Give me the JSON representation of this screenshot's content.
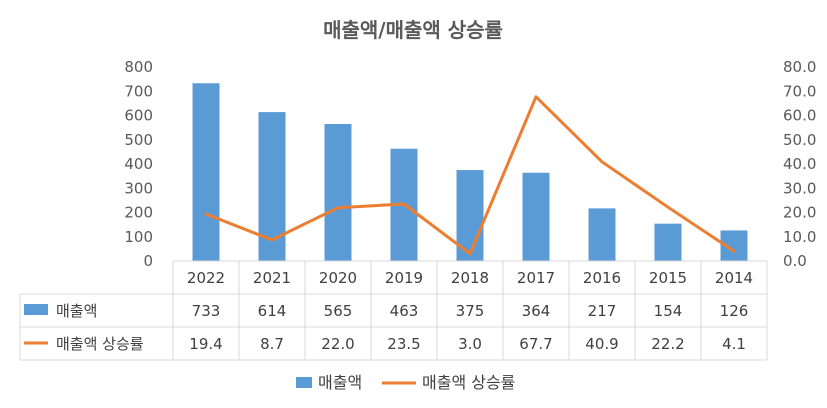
{
  "chart_data": {
    "type": "bar",
    "title": "매출액/매출액 상승률",
    "categories": [
      "2022",
      "2021",
      "2020",
      "2019",
      "2018",
      "2017",
      "2016",
      "2015",
      "2014"
    ],
    "series": [
      {
        "name": "매출액",
        "kind": "bar",
        "axis": "left",
        "color": "#5B9BD5",
        "values": [
          733,
          614,
          565,
          463,
          375,
          364,
          217,
          154,
          126
        ],
        "labels": [
          "733",
          "614",
          "565",
          "463",
          "375",
          "364",
          "217",
          "154",
          "126"
        ]
      },
      {
        "name": "매출액 상승률",
        "kind": "line",
        "axis": "right",
        "color": "#ED7D31",
        "values": [
          19.4,
          8.7,
          22.0,
          23.5,
          3.0,
          67.7,
          40.9,
          22.2,
          4.1
        ],
        "labels": [
          "19.4",
          "8.7",
          "22.0",
          "23.5",
          "3.0",
          "67.7",
          "40.9",
          "22.2",
          "4.1"
        ]
      }
    ],
    "ylim_left": [
      0,
      800
    ],
    "yticks_left": [
      "0",
      "100",
      "200",
      "300",
      "400",
      "500",
      "600",
      "700",
      "800"
    ],
    "ylim_right": [
      0,
      80
    ],
    "yticks_right": [
      "0.0",
      "10.0",
      "20.0",
      "30.0",
      "40.0",
      "50.0",
      "60.0",
      "70.0",
      "80.0"
    ],
    "grid": false,
    "data_table": true,
    "legend_position": "bottom"
  }
}
